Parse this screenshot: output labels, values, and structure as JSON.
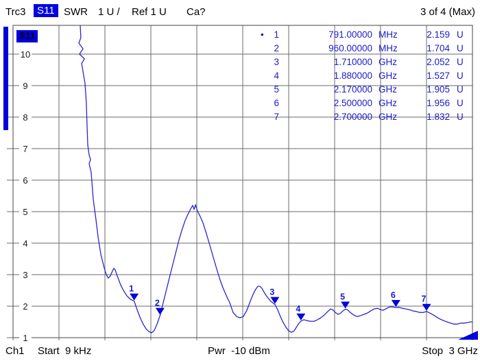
{
  "header": {
    "trace": "Trc3",
    "parameter": "S11",
    "format": "SWR",
    "scale": "1 U /",
    "ref": "Ref 1 U",
    "cal": "Ca?",
    "window_info": "3 of 4 (Max)"
  },
  "plot": {
    "trace_name": "S11"
  },
  "footer": {
    "channel": "Ch1",
    "start": "Start  9 kHz",
    "power": "Pwr  -10 dBm",
    "stop": "Stop  3 GHz"
  },
  "colors": {
    "accent": "#0000dd",
    "trace": "#2626cc",
    "marker_text": "#1a1acc",
    "grid": "#6a6a6a",
    "border": "#444444"
  },
  "markers": [
    {
      "id": "1",
      "active": true,
      "bullet": "•",
      "freq_display": "791.00000",
      "freq_unit": "MHz",
      "value_display": "2.159",
      "value_unit": "U",
      "f_ghz": 0.791,
      "swr": 2.159
    },
    {
      "id": "2",
      "active": false,
      "bullet": "",
      "freq_display": "960.00000",
      "freq_unit": "MHz",
      "value_display": "1.704",
      "value_unit": "U",
      "f_ghz": 0.96,
      "swr": 1.704
    },
    {
      "id": "3",
      "active": false,
      "bullet": "",
      "freq_display": "1.710000",
      "freq_unit": "GHz",
      "value_display": "2.052",
      "value_unit": "U",
      "f_ghz": 1.71,
      "swr": 2.052
    },
    {
      "id": "4",
      "active": false,
      "bullet": "",
      "freq_display": "1.880000",
      "freq_unit": "GHz",
      "value_display": "1.527",
      "value_unit": "U",
      "f_ghz": 1.88,
      "swr": 1.527
    },
    {
      "id": "5",
      "active": false,
      "bullet": "",
      "freq_display": "2.170000",
      "freq_unit": "GHz",
      "value_display": "1.905",
      "value_unit": "U",
      "f_ghz": 2.17,
      "swr": 1.905
    },
    {
      "id": "6",
      "active": false,
      "bullet": "",
      "freq_display": "2.500000",
      "freq_unit": "GHz",
      "value_display": "1.956",
      "value_unit": "U",
      "f_ghz": 2.5,
      "swr": 1.956
    },
    {
      "id": "7",
      "active": false,
      "bullet": "",
      "freq_display": "2.700000",
      "freq_unit": "GHz",
      "value_display": "1.832",
      "value_unit": "U",
      "f_ghz": 2.7,
      "swr": 1.832
    }
  ],
  "chart_data": {
    "type": "line",
    "title": "Trc3 S11 SWR",
    "xlabel": "Frequency (9 kHz to 3 GHz, linear sweep)",
    "ylabel": "SWR (U)",
    "x_range_ghz": [
      0,
      3
    ],
    "ylim": [
      1,
      10.9
    ],
    "y_ticks": [
      1,
      2,
      3,
      4,
      5,
      6,
      7,
      8,
      9,
      10
    ],
    "x_divisions": 10,
    "grid": true,
    "legend_position": "none",
    "series": [
      {
        "name": "S11 SWR",
        "points_f_ghz_swr": [
          [
            0.439,
            10.92
          ],
          [
            0.443,
            10.52
          ],
          [
            0.43,
            10.35
          ],
          [
            0.457,
            10.17
          ],
          [
            0.434,
            10.0
          ],
          [
            0.466,
            9.85
          ],
          [
            0.448,
            9.7
          ],
          [
            0.47,
            9.07
          ],
          [
            0.479,
            8.41
          ],
          [
            0.483,
            7.76
          ],
          [
            0.488,
            7.11
          ],
          [
            0.497,
            6.8
          ],
          [
            0.506,
            6.65
          ],
          [
            0.497,
            6.52
          ],
          [
            0.51,
            6.26
          ],
          [
            0.524,
            5.39
          ],
          [
            0.542,
            4.74
          ],
          [
            0.555,
            4.2
          ],
          [
            0.573,
            3.65
          ],
          [
            0.595,
            3.22
          ],
          [
            0.609,
            3.0
          ],
          [
            0.622,
            2.89
          ],
          [
            0.636,
            2.96
          ],
          [
            0.649,
            3.11
          ],
          [
            0.658,
            3.2
          ],
          [
            0.667,
            3.15
          ],
          [
            0.676,
            3.02
          ],
          [
            0.689,
            2.85
          ],
          [
            0.703,
            2.67
          ],
          [
            0.721,
            2.5
          ],
          [
            0.743,
            2.33
          ],
          [
            0.766,
            2.22
          ],
          [
            0.791,
            2.159
          ],
          [
            0.81,
            1.89
          ],
          [
            0.832,
            1.61
          ],
          [
            0.85,
            1.43
          ],
          [
            0.868,
            1.28
          ],
          [
            0.886,
            1.2
          ],
          [
            0.903,
            1.15
          ],
          [
            0.921,
            1.22
          ],
          [
            0.939,
            1.41
          ],
          [
            0.96,
            1.704
          ],
          [
            0.976,
            2.02
          ],
          [
            0.994,
            2.37
          ],
          [
            1.016,
            2.8
          ],
          [
            1.039,
            3.24
          ],
          [
            1.061,
            3.67
          ],
          [
            1.084,
            4.11
          ],
          [
            1.106,
            4.46
          ],
          [
            1.124,
            4.72
          ],
          [
            1.142,
            4.91
          ],
          [
            1.16,
            5.09
          ],
          [
            1.173,
            5.2
          ],
          [
            1.182,
            5.07
          ],
          [
            1.191,
            5.22
          ],
          [
            1.204,
            5.02
          ],
          [
            1.222,
            4.85
          ],
          [
            1.24,
            4.65
          ],
          [
            1.258,
            4.37
          ],
          [
            1.281,
            4.0
          ],
          [
            1.303,
            3.63
          ],
          [
            1.325,
            3.26
          ],
          [
            1.348,
            2.89
          ],
          [
            1.37,
            2.59
          ],
          [
            1.393,
            2.33
          ],
          [
            1.415,
            2.11
          ],
          [
            1.437,
            1.8
          ],
          [
            1.46,
            1.67
          ],
          [
            1.482,
            1.63
          ],
          [
            1.504,
            1.67
          ],
          [
            1.527,
            1.87
          ],
          [
            1.549,
            2.15
          ],
          [
            1.567,
            2.37
          ],
          [
            1.585,
            2.54
          ],
          [
            1.599,
            2.63
          ],
          [
            1.612,
            2.63
          ],
          [
            1.625,
            2.57
          ],
          [
            1.643,
            2.41
          ],
          [
            1.661,
            2.28
          ],
          [
            1.684,
            2.15
          ],
          [
            1.71,
            2.052
          ],
          [
            1.728,
            1.89
          ],
          [
            1.746,
            1.67
          ],
          [
            1.764,
            1.48
          ],
          [
            1.782,
            1.33
          ],
          [
            1.8,
            1.22
          ],
          [
            1.818,
            1.17
          ],
          [
            1.836,
            1.22
          ],
          [
            1.853,
            1.35
          ],
          [
            1.867,
            1.46
          ],
          [
            1.88,
            1.527
          ],
          [
            1.899,
            1.57
          ],
          [
            1.921,
            1.54
          ],
          [
            1.943,
            1.52
          ],
          [
            1.966,
            1.52
          ],
          [
            1.988,
            1.57
          ],
          [
            2.01,
            1.63
          ],
          [
            2.033,
            1.72
          ],
          [
            2.055,
            1.83
          ],
          [
            2.073,
            1.91
          ],
          [
            2.087,
            1.89
          ],
          [
            2.104,
            1.8
          ],
          [
            2.122,
            1.74
          ],
          [
            2.14,
            1.78
          ],
          [
            2.154,
            1.85
          ],
          [
            2.17,
            1.905
          ],
          [
            2.184,
            1.89
          ],
          [
            2.202,
            1.8
          ],
          [
            2.224,
            1.72
          ],
          [
            2.247,
            1.67
          ],
          [
            2.269,
            1.7
          ],
          [
            2.291,
            1.74
          ],
          [
            2.314,
            1.78
          ],
          [
            2.336,
            1.85
          ],
          [
            2.358,
            1.91
          ],
          [
            2.381,
            1.93
          ],
          [
            2.399,
            1.89
          ],
          [
            2.416,
            1.87
          ],
          [
            2.434,
            1.91
          ],
          [
            2.452,
            1.96
          ],
          [
            2.47,
            1.98
          ],
          [
            2.5,
            1.956
          ],
          [
            2.521,
            1.96
          ],
          [
            2.543,
            1.93
          ],
          [
            2.566,
            1.91
          ],
          [
            2.588,
            1.89
          ],
          [
            2.61,
            1.85
          ],
          [
            2.633,
            1.83
          ],
          [
            2.655,
            1.8
          ],
          [
            2.678,
            1.8
          ],
          [
            2.7,
            1.832
          ],
          [
            2.722,
            1.78
          ],
          [
            2.745,
            1.72
          ],
          [
            2.767,
            1.65
          ],
          [
            2.789,
            1.59
          ],
          [
            2.812,
            1.54
          ],
          [
            2.834,
            1.5
          ],
          [
            2.857,
            1.46
          ],
          [
            2.879,
            1.43
          ],
          [
            2.901,
            1.43
          ],
          [
            2.924,
            1.46
          ],
          [
            2.946,
            1.46
          ],
          [
            2.969,
            1.48
          ],
          [
            2.987,
            1.5
          ],
          [
            3.0,
            1.5
          ]
        ]
      }
    ]
  }
}
